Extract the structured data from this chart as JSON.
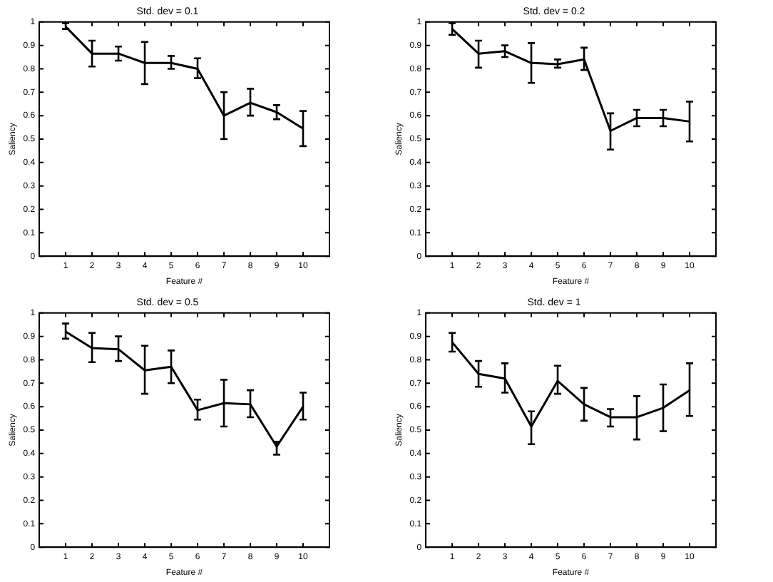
{
  "chart_data": [
    {
      "type": "line",
      "title": "Std. dev = 0.1",
      "xlabel": "Feature #",
      "ylabel": "Saliency",
      "x": [
        1,
        2,
        3,
        4,
        5,
        6,
        7,
        8,
        9,
        10
      ],
      "xlim": [
        0,
        11
      ],
      "xticks": [
        1,
        2,
        3,
        4,
        5,
        6,
        7,
        8,
        9,
        10
      ],
      "ylim": [
        0,
        1
      ],
      "yticks": [
        0,
        0.1,
        0.2,
        0.3,
        0.4,
        0.5,
        0.6,
        0.7,
        0.8,
        0.9,
        1
      ],
      "grid": false,
      "legend": false,
      "marker": "none",
      "line_style": "solid",
      "series": [
        {
          "color": "#000000",
          "values": [
            0.98,
            0.865,
            0.865,
            0.825,
            0.825,
            0.8,
            0.6,
            0.655,
            0.615,
            0.545
          ],
          "errors": [
            [
              0.97,
              0.995
            ],
            [
              0.81,
              0.92
            ],
            [
              0.835,
              0.895
            ],
            [
              0.735,
              0.915
            ],
            [
              0.8,
              0.855
            ],
            [
              0.76,
              0.845
            ],
            [
              0.5,
              0.7
            ],
            [
              0.6,
              0.715
            ],
            [
              0.585,
              0.645
            ],
            [
              0.47,
              0.62
            ]
          ]
        }
      ]
    },
    {
      "type": "line",
      "title": "Std. dev = 0.2",
      "xlabel": "Feature #",
      "ylabel": "Saliency",
      "x": [
        1,
        2,
        3,
        4,
        5,
        6,
        7,
        8,
        9,
        10
      ],
      "xlim": [
        0,
        11
      ],
      "xticks": [
        1,
        2,
        3,
        4,
        5,
        6,
        7,
        8,
        9,
        10
      ],
      "ylim": [
        0,
        1
      ],
      "yticks": [
        0,
        0.1,
        0.2,
        0.3,
        0.4,
        0.5,
        0.6,
        0.7,
        0.8,
        0.9,
        1
      ],
      "grid": false,
      "legend": false,
      "marker": "none",
      "line_style": "solid",
      "series": [
        {
          "color": "#000000",
          "values": [
            0.97,
            0.865,
            0.875,
            0.825,
            0.82,
            0.84,
            0.535,
            0.59,
            0.59,
            0.575
          ],
          "errors": [
            [
              0.945,
              0.995
            ],
            [
              0.805,
              0.92
            ],
            [
              0.85,
              0.9
            ],
            [
              0.74,
              0.91
            ],
            [
              0.805,
              0.84
            ],
            [
              0.795,
              0.89
            ],
            [
              0.455,
              0.61
            ],
            [
              0.555,
              0.625
            ],
            [
              0.555,
              0.625
            ],
            [
              0.49,
              0.66
            ]
          ]
        }
      ]
    },
    {
      "type": "line",
      "title": "Std. dev = 0.5",
      "xlabel": "Feature #",
      "ylabel": "Saliency",
      "x": [
        1,
        2,
        3,
        4,
        5,
        6,
        7,
        8,
        9,
        10
      ],
      "xlim": [
        0,
        11
      ],
      "xticks": [
        1,
        2,
        3,
        4,
        5,
        6,
        7,
        8,
        9,
        10
      ],
      "ylim": [
        0,
        1
      ],
      "yticks": [
        0,
        0.1,
        0.2,
        0.3,
        0.4,
        0.5,
        0.6,
        0.7,
        0.8,
        0.9,
        1
      ],
      "grid": false,
      "legend": false,
      "marker": "none",
      "line_style": "solid",
      "series": [
        {
          "color": "#000000",
          "values": [
            0.92,
            0.85,
            0.845,
            0.755,
            0.77,
            0.585,
            0.615,
            0.61,
            0.43,
            0.6
          ],
          "errors": [
            [
              0.89,
              0.955
            ],
            [
              0.79,
              0.915
            ],
            [
              0.795,
              0.9
            ],
            [
              0.655,
              0.86
            ],
            [
              0.7,
              0.84
            ],
            [
              0.545,
              0.63
            ],
            [
              0.515,
              0.715
            ],
            [
              0.555,
              0.67
            ],
            [
              0.395,
              0.45
            ],
            [
              0.545,
              0.66
            ]
          ]
        }
      ]
    },
    {
      "type": "line",
      "title": "Std. dev = 1",
      "xlabel": "Feature #",
      "ylabel": "Saliency",
      "x": [
        1,
        2,
        3,
        4,
        5,
        6,
        7,
        8,
        9,
        10
      ],
      "xlim": [
        0,
        11
      ],
      "xticks": [
        1,
        2,
        3,
        4,
        5,
        6,
        7,
        8,
        9,
        10
      ],
      "ylim": [
        0,
        1
      ],
      "yticks": [
        0,
        0.1,
        0.2,
        0.3,
        0.4,
        0.5,
        0.6,
        0.7,
        0.8,
        0.9,
        1
      ],
      "grid": false,
      "legend": false,
      "marker": "none",
      "line_style": "solid",
      "series": [
        {
          "color": "#000000",
          "values": [
            0.875,
            0.74,
            0.72,
            0.515,
            0.71,
            0.61,
            0.555,
            0.555,
            0.595,
            0.67
          ],
          "errors": [
            [
              0.835,
              0.915
            ],
            [
              0.685,
              0.795
            ],
            [
              0.66,
              0.785
            ],
            [
              0.44,
              0.58
            ],
            [
              0.655,
              0.775
            ],
            [
              0.54,
              0.68
            ],
            [
              0.515,
              0.59
            ],
            [
              0.46,
              0.645
            ],
            [
              0.495,
              0.695
            ],
            [
              0.56,
              0.785
            ]
          ]
        }
      ]
    }
  ]
}
